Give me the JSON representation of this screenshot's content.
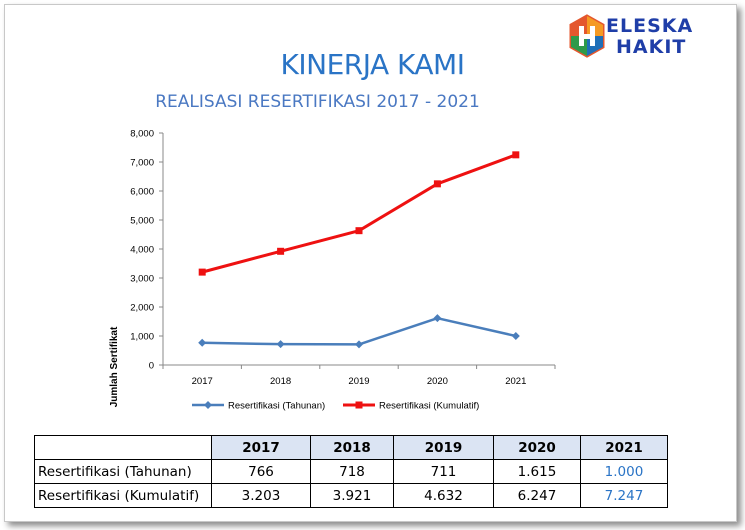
{
  "logo": {
    "line1": "ELESKA",
    "line2": "HAKIT"
  },
  "title": "KINERJA KAMI",
  "subtitle": "REALISASI  RESERTIFIKASI  2017 - 2021",
  "chart_data": {
    "type": "line",
    "categories": [
      "2017",
      "2018",
      "2019",
      "2020",
      "2021"
    ],
    "series": [
      {
        "name": "Resertifikasi (Tahunan)",
        "values": [
          766,
          718,
          711,
          1615,
          1000
        ],
        "color": "#4a7ebb",
        "marker": "diamond"
      },
      {
        "name": "Resertifikasi (Kumulatif)",
        "values": [
          3203,
          3921,
          4632,
          6247,
          7247
        ],
        "color": "#ee1111",
        "marker": "square"
      }
    ],
    "ylabel": "Jumlah Sertifikat",
    "ylim": [
      0,
      8000
    ],
    "yticks": [
      "0",
      "1,000",
      "2,000",
      "3,000",
      "4,000",
      "5,000",
      "6,000",
      "7,000",
      "8,000"
    ],
    "grid": false,
    "legend": "bottom"
  },
  "table": {
    "headers": [
      "",
      "2017",
      "2018",
      "2019",
      "2020",
      "2021"
    ],
    "rows": [
      {
        "label": "Resertifikasi (Tahunan)",
        "values": [
          "766",
          "718",
          "711",
          "1.615",
          "1.000"
        ]
      },
      {
        "label": "Resertifikasi (Kumulatif)",
        "values": [
          "3.203",
          "3.921",
          "4.632",
          "6.247",
          "7.247"
        ]
      }
    ]
  }
}
